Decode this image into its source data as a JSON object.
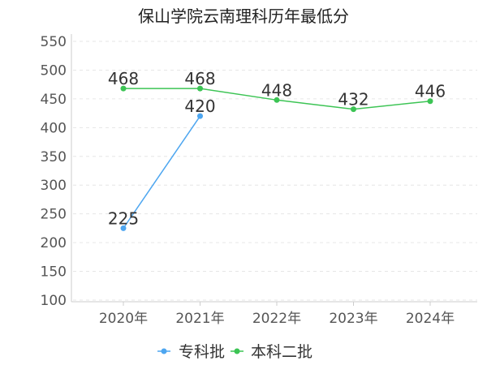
{
  "chart_data": {
    "type": "line",
    "title": "保山学院云南理科历年最低分",
    "xlabel": "",
    "ylabel": "",
    "categories": [
      "2020年",
      "2021年",
      "2022年",
      "2023年",
      "2024年"
    ],
    "ylim": [
      100,
      550
    ],
    "yticks": [
      100,
      150,
      200,
      250,
      300,
      350,
      400,
      450,
      500,
      550
    ],
    "grid": true,
    "legend_position": "bottom-center",
    "series": [
      {
        "name": "专科批",
        "color": "#4da6f0",
        "values": [
          225,
          420,
          null,
          null,
          null
        ]
      },
      {
        "name": "本科二批",
        "color": "#3cc454",
        "values": [
          468,
          468,
          448,
          432,
          446
        ]
      }
    ]
  }
}
